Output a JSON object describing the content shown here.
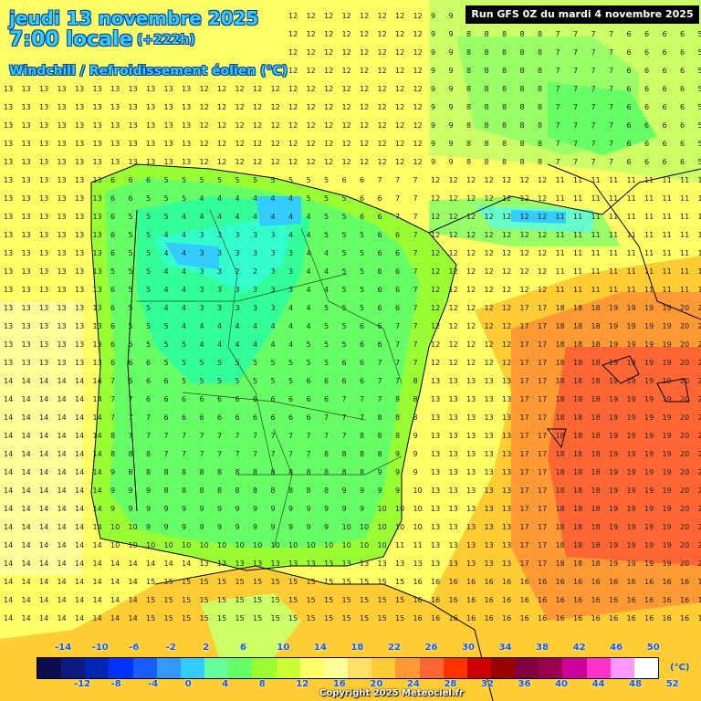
{
  "header": {
    "date_line": "jeudi 13 novembre 2025",
    "time_line": "7:00 locale",
    "lead_time": "(+222h)",
    "variable": "Windchill / Refroidissement éolien (°C)",
    "run_info": "Run GFS 0Z du mardi 4 novembre 2025"
  },
  "legend": {
    "unit": "(°C)",
    "colors": [
      "#0d0d4d",
      "#0d1a80",
      "#0026b3",
      "#0033ff",
      "#1a5cff",
      "#3399ff",
      "#33ccff",
      "#66ff99",
      "#66ff66",
      "#99ff33",
      "#ccff33",
      "#ffff66",
      "#ffff99",
      "#ffe066",
      "#ffcc33",
      "#ff9933",
      "#ff6633",
      "#ff3300",
      "#cc0000",
      "#990000",
      "#800040",
      "#99004d",
      "#cc0099",
      "#ff33cc",
      "#ff99ff",
      "#ffffff"
    ],
    "top_ticks": [
      "-14",
      "-10",
      "-6",
      "-2",
      "2",
      "6",
      "10",
      "14",
      "18",
      "22",
      "26",
      "30",
      "34",
      "38",
      "42",
      "46",
      "50"
    ],
    "bottom_ticks": [
      "-12",
      "-8",
      "-4",
      "0",
      "4",
      "8",
      "12",
      "16",
      "20",
      "24",
      "28",
      "32",
      "36",
      "40",
      "44",
      "48",
      "52"
    ]
  },
  "footer": {
    "copyright": "Copyright 2025 Meteociel.fr"
  }
}
